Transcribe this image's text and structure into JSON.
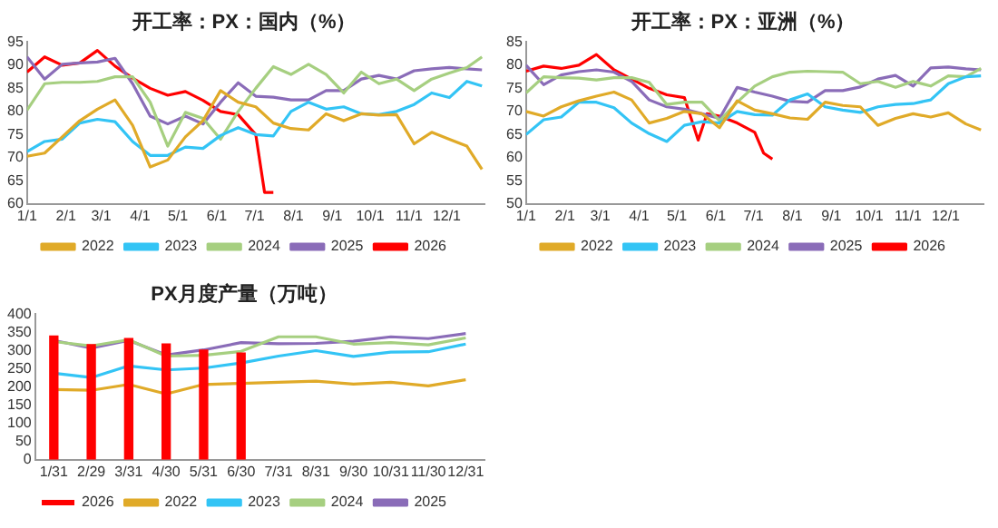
{
  "chart_data": [
    {
      "type": "line",
      "title": "开工率：PX：国内（%）",
      "legend": "bottom",
      "marker": "none",
      "grid": false,
      "xlim": [
        "--01-01",
        "--12-31"
      ],
      "xticks": [
        {
          "value": "--01-01",
          "label": "1/1"
        },
        {
          "value": "--02-01",
          "label": "2/1"
        },
        {
          "value": "--03-01",
          "label": "3/1"
        },
        {
          "value": "--04-01",
          "label": "4/1"
        },
        {
          "value": "--05-01",
          "label": "5/1"
        },
        {
          "value": "--06-01",
          "label": "6/1"
        },
        {
          "value": "--07-01",
          "label": "7/1"
        },
        {
          "value": "--08-01",
          "label": "8/1"
        },
        {
          "value": "--09-01",
          "label": "9/1"
        },
        {
          "value": "--10-01",
          "label": "10/1"
        },
        {
          "value": "--11-01",
          "label": "11/1"
        },
        {
          "value": "--12-01",
          "label": "12/1"
        }
      ],
      "ylim": [
        60,
        95
      ],
      "yticks": [
        60,
        65,
        70,
        75,
        80,
        85,
        90,
        95
      ],
      "x": [
        "--01-01",
        "--01-15",
        "--01-29",
        "--02-12",
        "--02-26",
        "--03-12",
        "--03-26",
        "--04-09",
        "--04-23",
        "--05-07",
        "--05-21",
        "--06-04",
        "--06-18",
        "--07-02",
        "--07-16",
        "--07-30",
        "--08-13",
        "--08-27",
        "--09-10",
        "--09-24",
        "--10-08",
        "--10-22",
        "--11-05",
        "--11-19",
        "--12-03",
        "--12-17",
        "--12-29"
      ],
      "series": [
        {
          "name": "2022",
          "color": "#e0aa28",
          "values": [
            70.3,
            71,
            74.5,
            78,
            80.5,
            82.5,
            77,
            68,
            69.5,
            74.5,
            78,
            84.5,
            82,
            81,
            77.5,
            76.3,
            76,
            79.5,
            78,
            79.5,
            79.2,
            79.3,
            73,
            75.5,
            74,
            72.5,
            67.5
          ]
        },
        {
          "name": "2023",
          "color": "#33c4f5",
          "values": [
            71.3,
            73.5,
            74,
            77.5,
            78.3,
            77.8,
            73.5,
            70.5,
            70.5,
            72.3,
            72,
            74.8,
            76.5,
            75,
            74.7,
            80,
            82,
            80.5,
            81,
            79.5,
            79.3,
            80,
            81.5,
            84,
            83,
            86.5,
            85.5
          ]
        },
        {
          "name": "2024",
          "color": "#a6cf80",
          "values": [
            80.3,
            86,
            86.3,
            86.3,
            86.5,
            87.5,
            87.5,
            82,
            72.5,
            79.8,
            78.5,
            74,
            80,
            85,
            89.7,
            88,
            90.2,
            88,
            84,
            88.5,
            86,
            87,
            84.5,
            87,
            88.3,
            89.5,
            91.8
          ]
        },
        {
          "name": "2025",
          "color": "#8a6cb8",
          "values": [
            91.8,
            87,
            90.2,
            90.5,
            90.7,
            91.5,
            86,
            79,
            77.3,
            79,
            77.3,
            82,
            86.2,
            83.3,
            83.1,
            82.5,
            82.5,
            84.5,
            84.5,
            87,
            87.8,
            87,
            88.8,
            89.2,
            89.5,
            89.2,
            89
          ]
        },
        {
          "name": "2026",
          "color": "#ff0000",
          "x": [
            "--01-01",
            "--01-15",
            "--01-29",
            "--02-12",
            "--02-26",
            "--03-12",
            "--03-26",
            "--04-09",
            "--04-23",
            "--05-07",
            "--05-21",
            "--06-04",
            "--06-18",
            "--07-02",
            "--07-09",
            "--07-16"
          ],
          "values": [
            88.5,
            91.8,
            90,
            90.5,
            93.2,
            89.8,
            87.2,
            85,
            83.5,
            84.3,
            82.4,
            80,
            79.3,
            75,
            62.5,
            62.5
          ]
        }
      ]
    },
    {
      "type": "line",
      "title": "开工率：PX：亚洲（%）",
      "legend": "bottom",
      "marker": "none",
      "grid": false,
      "xlim": [
        "--01-01",
        "--12-31"
      ],
      "xticks": [
        {
          "value": "--01-01",
          "label": "1/1"
        },
        {
          "value": "--02-01",
          "label": "2/1"
        },
        {
          "value": "--03-01",
          "label": "3/1"
        },
        {
          "value": "--04-01",
          "label": "4/1"
        },
        {
          "value": "--05-01",
          "label": "5/1"
        },
        {
          "value": "--06-01",
          "label": "6/1"
        },
        {
          "value": "--07-01",
          "label": "7/1"
        },
        {
          "value": "--08-01",
          "label": "8/1"
        },
        {
          "value": "--09-01",
          "label": "9/1"
        },
        {
          "value": "--10-01",
          "label": "10/1"
        },
        {
          "value": "--11-01",
          "label": "11/1"
        },
        {
          "value": "--12-01",
          "label": "12/1"
        }
      ],
      "ylim": [
        50,
        85
      ],
      "yticks": [
        50,
        55,
        60,
        65,
        70,
        75,
        80,
        85
      ],
      "x": [
        "--01-01",
        "--01-15",
        "--01-29",
        "--02-12",
        "--02-26",
        "--03-12",
        "--03-26",
        "--04-09",
        "--04-23",
        "--05-07",
        "--05-21",
        "--06-04",
        "--06-18",
        "--07-02",
        "--07-16",
        "--07-30",
        "--08-13",
        "--08-27",
        "--09-10",
        "--09-24",
        "--10-08",
        "--10-22",
        "--11-05",
        "--11-19",
        "--12-03",
        "--12-17",
        "--12-29"
      ],
      "series": [
        {
          "name": "2022",
          "color": "#e0aa28",
          "values": [
            70,
            69,
            71,
            72.3,
            73.3,
            74.2,
            72.5,
            67.5,
            68.5,
            70,
            69.5,
            66.5,
            72.3,
            70.3,
            69.5,
            68.6,
            68.3,
            72,
            71.3,
            71,
            67,
            68.5,
            69.5,
            68.8,
            69.7,
            67.3,
            66
          ]
        },
        {
          "name": "2023",
          "color": "#33c4f5",
          "values": [
            65,
            68.2,
            68.8,
            72,
            72,
            70.8,
            67.5,
            65.2,
            63.5,
            67,
            67.8,
            67.5,
            70,
            69.3,
            69.2,
            72.5,
            73.8,
            71,
            70.3,
            69.8,
            71,
            71.5,
            71.7,
            72.5,
            76,
            77.5,
            77.7
          ]
        },
        {
          "name": "2024",
          "color": "#a6cf80",
          "values": [
            74,
            77.5,
            77.3,
            77.2,
            76.8,
            77.3,
            77.3,
            76.3,
            71.5,
            72,
            72,
            68,
            72,
            75.5,
            77.5,
            78.5,
            78.7,
            78.6,
            78.5,
            76,
            76.5,
            75.2,
            76.5,
            75.5,
            77.7,
            77.5,
            79.3
          ]
        },
        {
          "name": "2025",
          "color": "#8a6cb8",
          "values": [
            80,
            75.8,
            77.9,
            78.6,
            79,
            78.5,
            76.5,
            72.5,
            71,
            70.5,
            69.5,
            68.5,
            75.2,
            74.2,
            73.3,
            72.2,
            72,
            74.5,
            74.5,
            75.3,
            77,
            77.8,
            75.5,
            79.4,
            79.6,
            79.2,
            79
          ]
        },
        {
          "name": "2026",
          "color": "#ff0000",
          "x": [
            "--01-01",
            "--01-15",
            "--01-29",
            "--02-12",
            "--02-26",
            "--03-12",
            "--03-26",
            "--04-09",
            "--04-23",
            "--05-07",
            "--05-18",
            "--05-25",
            "--06-04",
            "--06-18",
            "--07-02",
            "--07-09",
            "--07-16"
          ],
          "values": [
            78.7,
            79.8,
            79.3,
            80,
            82.3,
            79,
            77,
            75,
            73.6,
            73,
            63.8,
            69.5,
            69,
            67.5,
            65.5,
            61,
            59.7
          ]
        }
      ]
    },
    {
      "type": "line",
      "title": "PX月度产量（万吨）",
      "legend": "bottom",
      "marker": "none",
      "grid": false,
      "categories": [
        "1/31",
        "2/29",
        "3/31",
        "4/30",
        "5/31",
        "6/30",
        "7/31",
        "8/31",
        "9/30",
        "10/31",
        "11/30",
        "12/31"
      ],
      "ylim": [
        0,
        400
      ],
      "yticks": [
        0,
        50,
        100,
        150,
        200,
        250,
        300,
        350,
        400
      ],
      "series": [
        {
          "name": "2026",
          "type": "bar",
          "color": "#ff0000",
          "values": [
            342,
            318,
            335,
            320,
            303,
            295,
            null,
            null,
            null,
            null,
            null,
            null
          ]
        },
        {
          "name": "2022",
          "color": "#e0aa28",
          "values": [
            193,
            191,
            207,
            181,
            207,
            210,
            213,
            216,
            208,
            213,
            203,
            220
          ]
        },
        {
          "name": "2023",
          "color": "#33c4f5",
          "values": [
            238,
            226,
            258,
            247,
            252,
            266,
            285,
            300,
            284,
            296,
            297,
            318
          ]
        },
        {
          "name": "2024",
          "color": "#a6cf80",
          "values": [
            325,
            313,
            330,
            285,
            287,
            298,
            338,
            338,
            318,
            322,
            316,
            335
          ]
        },
        {
          "name": "2025",
          "color": "#8a6cb8",
          "values": [
            328,
            307,
            328,
            288,
            302,
            322,
            319,
            320,
            326,
            338,
            333,
            347
          ]
        }
      ]
    }
  ]
}
